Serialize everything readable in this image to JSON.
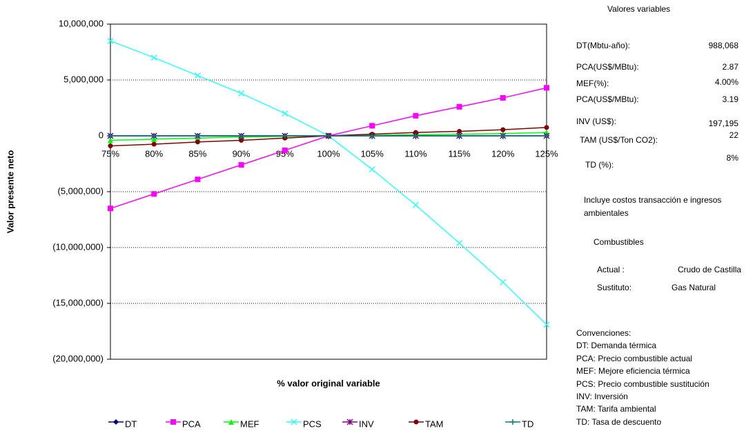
{
  "chart_data": {
    "type": "line",
    "x_label": "% valor original variable",
    "y_label": "Valor presente neto",
    "categories": [
      "75%",
      "80%",
      "85%",
      "90%",
      "95%",
      "100%",
      "105%",
      "110%",
      "115%",
      "120%",
      "125%"
    ],
    "series": [
      {
        "name": "DT",
        "color": "#000080",
        "marker": "diamond",
        "values": [
          0,
          0,
          0,
          0,
          0,
          0,
          0,
          0,
          0,
          0,
          0
        ]
      },
      {
        "name": "PCA",
        "color": "#ff00ff",
        "marker": "square",
        "values": [
          -6500000,
          -5200000,
          -3900000,
          -2600000,
          -1300000,
          0,
          900000,
          1800000,
          2600000,
          3400000,
          4300000
        ]
      },
      {
        "name": "MEF",
        "color": "#00ff00",
        "marker": "triangle",
        "values": [
          -400000,
          -300000,
          -200000,
          -100000,
          -50000,
          0,
          50000,
          100000,
          150000,
          200000,
          300000
        ]
      },
      {
        "name": "PCS",
        "color": "#33ffff",
        "marker": "x",
        "values": [
          8500000,
          7000000,
          5400000,
          3800000,
          2000000,
          0,
          -3000000,
          -6200000,
          -9600000,
          -13100000,
          -16900000
        ]
      },
      {
        "name": "INV",
        "color": "#800080",
        "marker": "star",
        "values": [
          0,
          0,
          0,
          0,
          0,
          0,
          0,
          0,
          0,
          0,
          0
        ]
      },
      {
        "name": "TAM",
        "color": "#800000",
        "marker": "circle",
        "values": [
          -900000,
          -750000,
          -550000,
          -400000,
          -200000,
          0,
          150000,
          300000,
          400000,
          550000,
          750000
        ]
      },
      {
        "name": "TD",
        "color": "#008080",
        "marker": "plus",
        "values": [
          0,
          0,
          0,
          0,
          0,
          0,
          0,
          0,
          0,
          0,
          0
        ]
      }
    ],
    "ylim": [
      -20000000,
      10000000
    ],
    "yticks": [
      {
        "value": -20000000,
        "label": "(20,000,000)"
      },
      {
        "value": -15000000,
        "label": "(15,000,000)"
      },
      {
        "value": -10000000,
        "label": "(10,000,000)"
      },
      {
        "value": -5000000,
        "label": "(5,000,000)"
      },
      0,
      {
        "value": 5000000,
        "label": "5,000,000"
      },
      {
        "value": 10000000,
        "label": "10,000,000"
      }
    ],
    "grid": true,
    "legend": "bottom"
  },
  "panel": {
    "title": "Valores variables",
    "rows": [
      [
        "DT(Mbtu-año):",
        "988,068"
      ],
      [
        "PCA(US$/MBtu):",
        "2.87"
      ],
      [
        "MEF(%):",
        "4.00%"
      ],
      [
        "PCA(US$/MBtu):",
        "3.19"
      ],
      [
        "INV (US$):",
        "197,195"
      ],
      [
        "TAM (US$/Ton CO2):",
        "22"
      ],
      [
        "TD (%):",
        "8%"
      ]
    ],
    "note": "Incluye costos transacción e ingresos ambientales",
    "fuels_title": "Combustibles",
    "fuels": [
      [
        "Actual :",
        "Crudo de Castilla"
      ],
      [
        "Sustituto:",
        "Gas Natural"
      ]
    ],
    "conventions": [
      "Convenciones:",
      "DT: Demanda térmica",
      "PCA: Precio combustible actual",
      "MEF: Mejore eficiencia térmica",
      "PCS:  Precio combustible sustitución",
      "INV:  Inversión",
      "TAM: Tarifa ambiental",
      "TD: Tasa de descuento"
    ]
  }
}
